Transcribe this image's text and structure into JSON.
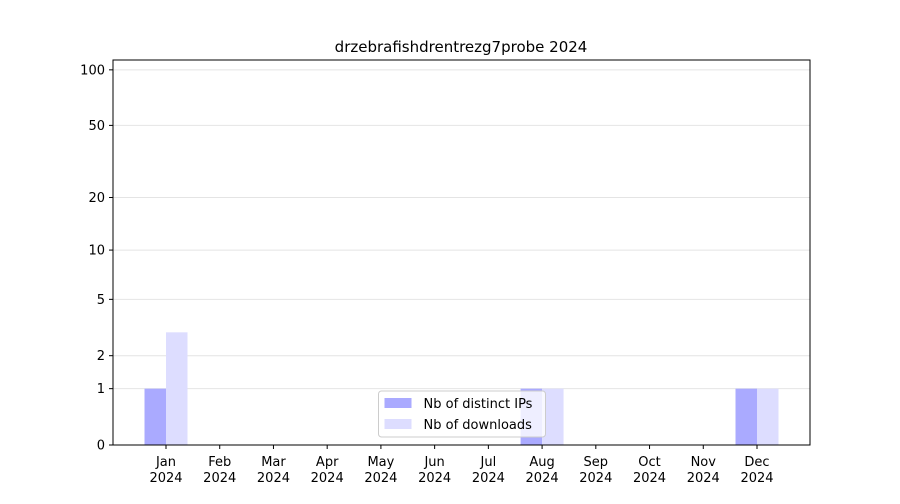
{
  "chart_data": {
    "type": "bar",
    "title": "drzebrafishdrentrezg7probe 2024",
    "categories": [
      "Jan 2024",
      "Feb 2024",
      "Mar 2024",
      "Apr 2024",
      "May 2024",
      "Jun 2024",
      "Jul 2024",
      "Aug 2024",
      "Sep 2024",
      "Oct 2024",
      "Nov 2024",
      "Dec 2024"
    ],
    "series": [
      {
        "name": "Nb of distinct IPs",
        "color": "#aaaaff",
        "values": [
          1,
          0,
          0,
          0,
          0,
          0,
          0,
          1,
          0,
          0,
          0,
          1
        ]
      },
      {
        "name": "Nb of downloads",
        "color": "#ddddff",
        "values": [
          3,
          0,
          0,
          0,
          0,
          0,
          0,
          1,
          0,
          0,
          0,
          1
        ]
      }
    ],
    "yscale": "log1p",
    "ylim": [
      0,
      113
    ],
    "yticks": [
      0,
      1,
      2,
      5,
      10,
      20,
      50,
      100
    ],
    "grid": true,
    "legend": "lower center"
  }
}
